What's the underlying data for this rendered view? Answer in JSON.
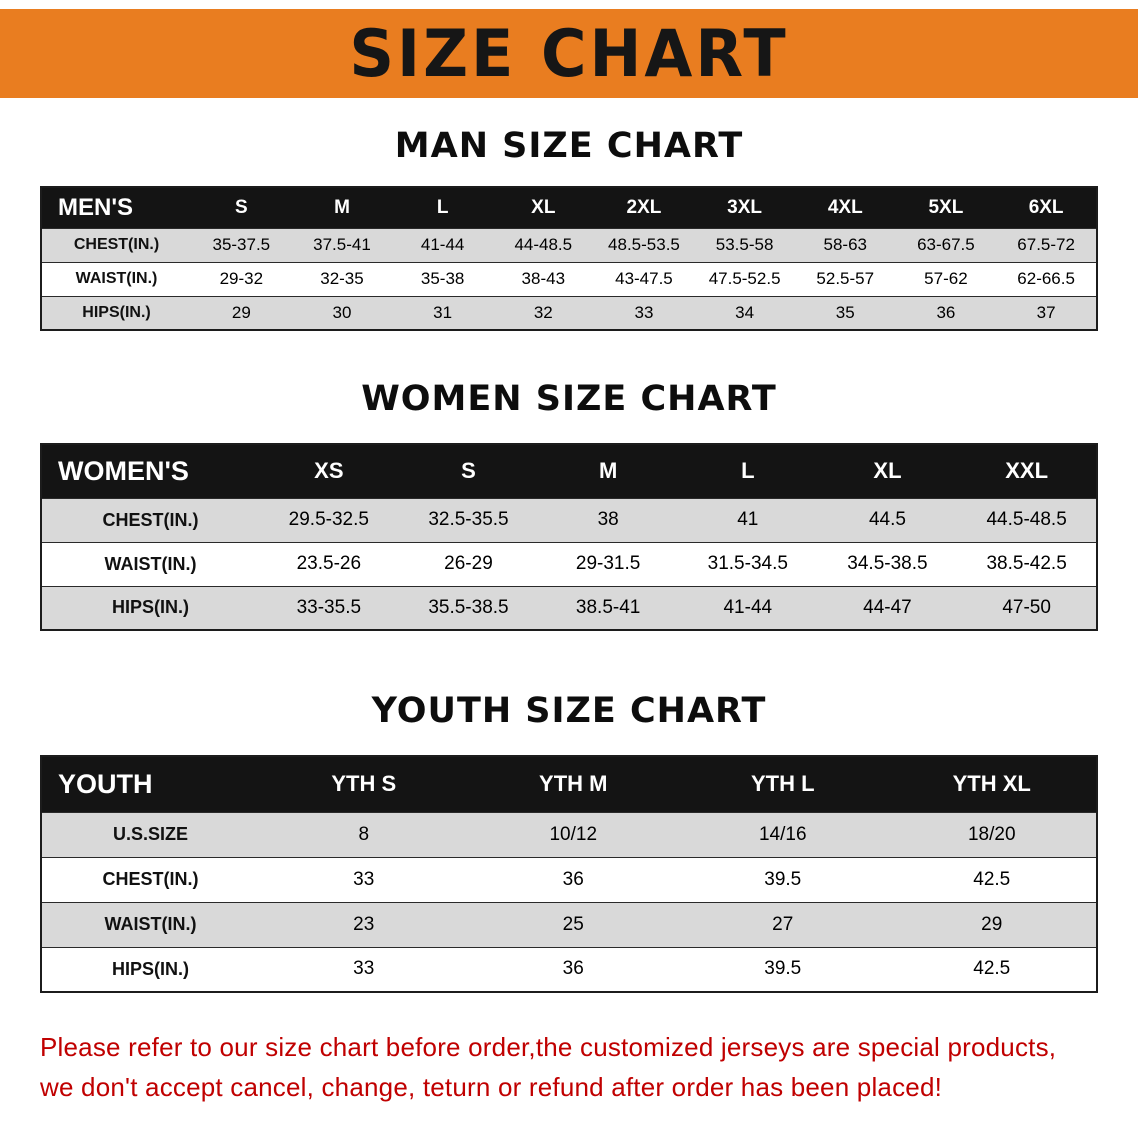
{
  "banner": {
    "title": "SIZE CHART"
  },
  "sections": [
    {
      "id": "men",
      "title": "MAN SIZE CHART",
      "header_label": "MEN'S",
      "columns": [
        "S",
        "M",
        "L",
        "XL",
        "2XL",
        "3XL",
        "4XL",
        "5XL",
        "6XL"
      ],
      "rows": [
        {
          "label": "CHEST(IN.)",
          "values": [
            "35-37.5",
            "37.5-41",
            "41-44",
            "44-48.5",
            "48.5-53.5",
            "53.5-58",
            "58-63",
            "63-67.5",
            "67.5-72"
          ]
        },
        {
          "label": "WAIST(IN.)",
          "values": [
            "29-32",
            "32-35",
            "35-38",
            "38-43",
            "43-47.5",
            "47.5-52.5",
            "52.5-57",
            "57-62",
            "62-66.5"
          ]
        },
        {
          "label": "HIPS(IN.)",
          "values": [
            "29",
            "30",
            "31",
            "32",
            "33",
            "34",
            "35",
            "36",
            "37"
          ]
        }
      ]
    },
    {
      "id": "women",
      "title": "WOMEN SIZE CHART",
      "header_label": "WOMEN'S",
      "columns": [
        "XS",
        "S",
        "M",
        "L",
        "XL",
        "XXL"
      ],
      "rows": [
        {
          "label": "CHEST(IN.)",
          "values": [
            "29.5-32.5",
            "32.5-35.5",
            "38",
            "41",
            "44.5",
            "44.5-48.5"
          ]
        },
        {
          "label": "WAIST(IN.)",
          "values": [
            "23.5-26",
            "26-29",
            "29-31.5",
            "31.5-34.5",
            "34.5-38.5",
            "38.5-42.5"
          ]
        },
        {
          "label": "HIPS(IN.)",
          "values": [
            "33-35.5",
            "35.5-38.5",
            "38.5-41",
            "41-44",
            "44-47",
            "47-50"
          ]
        }
      ]
    },
    {
      "id": "youth",
      "title": "YOUTH SIZE CHART",
      "header_label": "YOUTH",
      "columns": [
        "YTH S",
        "YTH M",
        "YTH L",
        "YTH XL"
      ],
      "rows": [
        {
          "label": "U.S.SIZE",
          "values": [
            "8",
            "10/12",
            "14/16",
            "18/20"
          ]
        },
        {
          "label": "CHEST(IN.)",
          "values": [
            "33",
            "36",
            "39.5",
            "42.5"
          ]
        },
        {
          "label": "WAIST(IN.)",
          "values": [
            "23",
            "25",
            "27",
            "29"
          ]
        },
        {
          "label": "HIPS(IN.)",
          "values": [
            "33",
            "36",
            "39.5",
            "42.5"
          ]
        }
      ]
    }
  ],
  "footer": {
    "lines": [
      "Please refer to our size chart before order,the customized jerseys are special products,",
      "we don't accept cancel, change, teturn or refund after order has been placed!"
    ]
  },
  "colors": {
    "banner_orange": "#e97d20",
    "table_header_black": "#141414",
    "row_gray": "#d9d9d9",
    "row_white": "#ffffff",
    "notice_red": "#c00000",
    "title_black": "#161616"
  }
}
